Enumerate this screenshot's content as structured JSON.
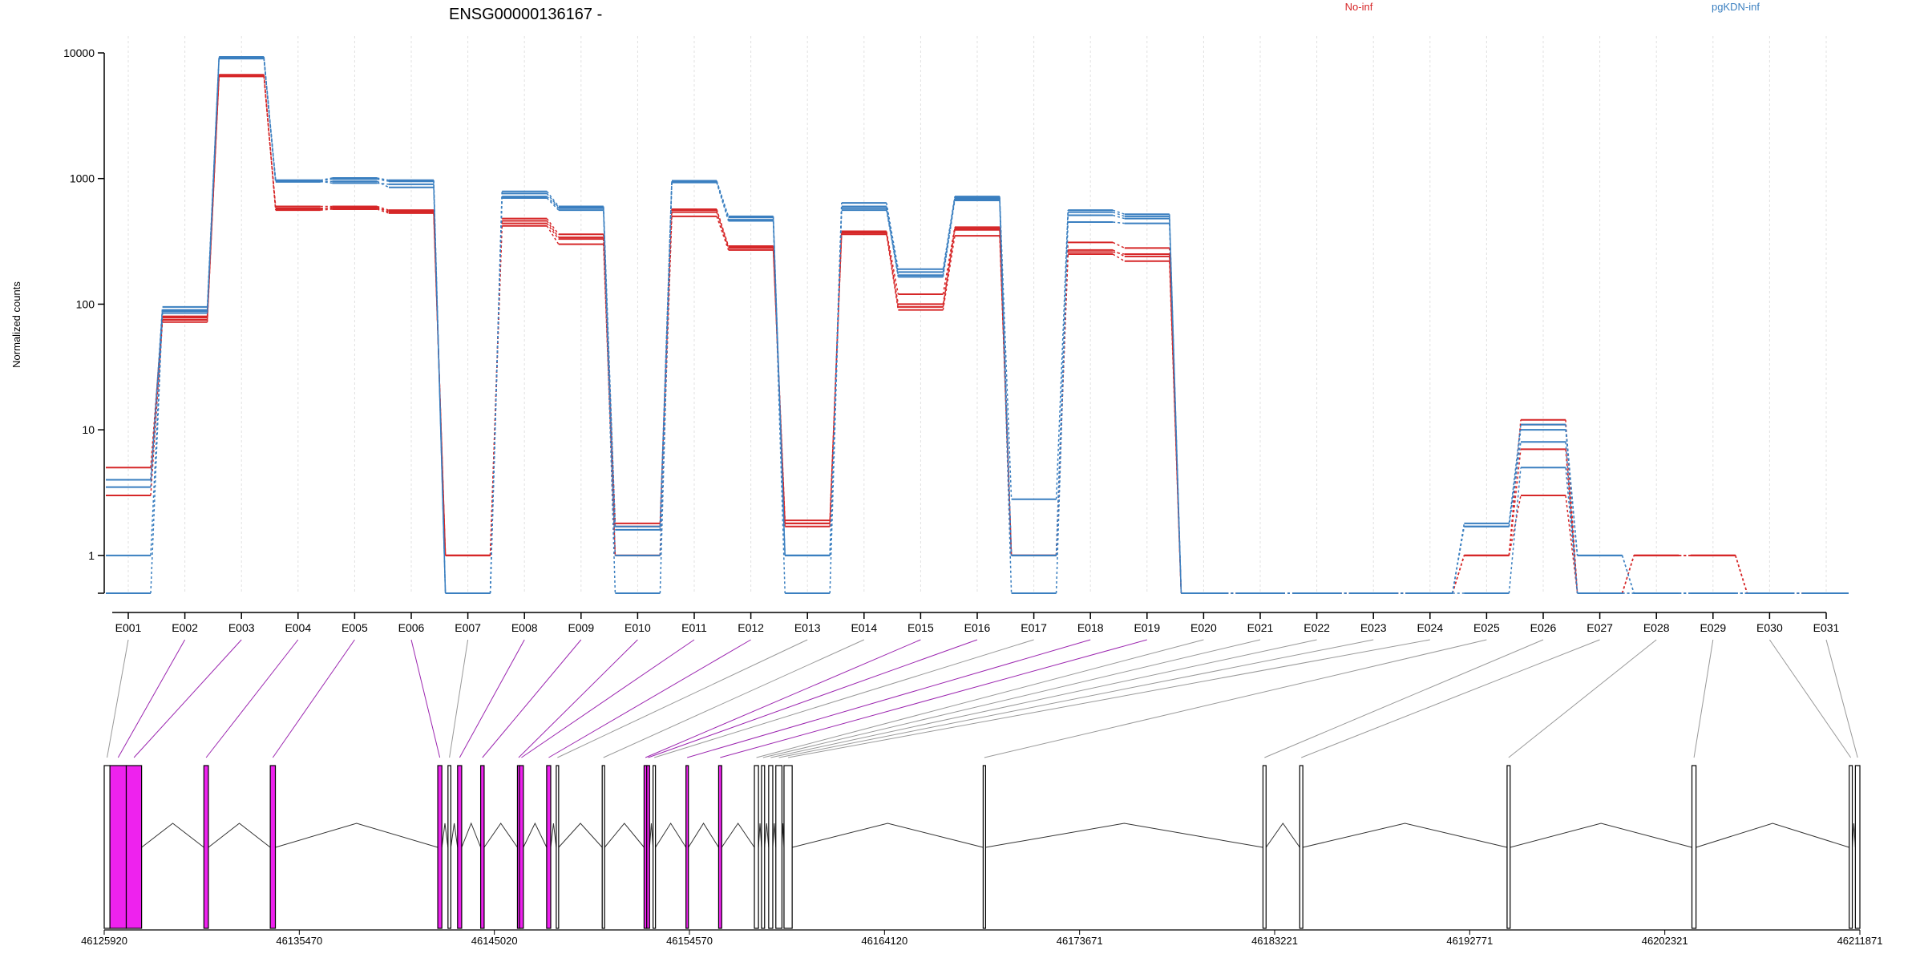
{
  "title": "ENSG00000136167 -",
  "legend": [
    {
      "name": "No-inf",
      "color": "#d62728"
    },
    {
      "name": "pgKDN-inf",
      "color": "#3a7fc0"
    }
  ],
  "colors": {
    "constitutive_exon": "#ee22ee",
    "nonconstitutive_exon": "#ffffff",
    "connector_const": "#9c27b0",
    "connector_other": "#999999",
    "intron_line": "#333333",
    "grid": "#e0e0e0"
  },
  "chart_data": {
    "type": "line",
    "scale": "log",
    "ylabel": "Normalized counts",
    "yticks": [
      1,
      10,
      100,
      1000,
      10000
    ],
    "yticklabels": [
      "1",
      "10",
      "100",
      "1000",
      "10000"
    ],
    "ylim": [
      0.5,
      10000
    ],
    "grid": "vertical-dotted",
    "categories": [
      "E001",
      "E002",
      "E003",
      "E004",
      "E005",
      "E006",
      "E007",
      "E008",
      "E009",
      "E010",
      "E011",
      "E012",
      "E013",
      "E014",
      "E015",
      "E016",
      "E017",
      "E018",
      "E019",
      "E020",
      "E021",
      "E022",
      "E023",
      "E024",
      "E025",
      "E026",
      "E027",
      "E028",
      "E029",
      "E030",
      "E031"
    ],
    "series": [
      {
        "group": "No-inf",
        "values": [
          5,
          80,
          6500,
          600,
          600,
          560,
          1,
          480,
          360,
          1.8,
          570,
          290,
          1.9,
          380,
          120,
          410,
          1,
          310,
          280,
          0.5,
          0.5,
          0.5,
          0.5,
          0.5,
          1,
          12,
          0.5,
          1,
          1,
          0.5,
          0.5
        ]
      },
      {
        "group": "No-inf",
        "values": [
          4,
          75,
          6600,
          570,
          590,
          540,
          1,
          440,
          330,
          1.7,
          540,
          280,
          1.8,
          370,
          100,
          390,
          1,
          270,
          240,
          0.5,
          0.5,
          0.5,
          0.5,
          0.5,
          1,
          11,
          0.5,
          1,
          1,
          0.5,
          0.5
        ]
      },
      {
        "group": "No-inf",
        "values": [
          3,
          72,
          6700,
          560,
          570,
          530,
          1,
          420,
          300,
          1,
          500,
          270,
          1.7,
          360,
          90,
          350,
          1,
          250,
          220,
          0.5,
          0.5,
          0.5,
          0.5,
          0.5,
          1,
          7,
          0.5,
          1,
          1,
          0.5,
          0.5
        ]
      },
      {
        "group": "No-inf",
        "values": [
          4,
          78,
          6550,
          580,
          580,
          550,
          1,
          460,
          340,
          1,
          560,
          285,
          1.8,
          375,
          95,
          400,
          1,
          260,
          250,
          0.5,
          0.5,
          0.5,
          0.5,
          0.5,
          1,
          3,
          0.5,
          1,
          1,
          0.5,
          0.5
        ]
      },
      {
        "group": "pgKDN-inf",
        "values": [
          4,
          95,
          9300,
          970,
          1010,
          970,
          0.5,
          790,
          600,
          1.7,
          960,
          500,
          1,
          640,
          190,
          720,
          2.8,
          560,
          520,
          0.5,
          0.5,
          0.5,
          0.5,
          0.5,
          1.8,
          11,
          1,
          0.5,
          0.5,
          0.5,
          0.5
        ]
      },
      {
        "group": "pgKDN-inf",
        "values": [
          3.5,
          90,
          9200,
          960,
          990,
          950,
          0.5,
          760,
          590,
          1.6,
          950,
          490,
          1,
          600,
          180,
          700,
          1,
          540,
          500,
          0.5,
          0.5,
          0.5,
          0.5,
          0.5,
          1.7,
          10,
          1,
          0.5,
          0.5,
          0.5,
          0.5
        ]
      },
      {
        "group": "pgKDN-inf",
        "values": [
          1,
          85,
          9100,
          950,
          920,
          900,
          0.5,
          720,
          580,
          1,
          940,
          470,
          1,
          560,
          170,
          690,
          1,
          510,
          480,
          0.5,
          0.5,
          0.5,
          0.5,
          0.5,
          1.7,
          8,
          0.5,
          0.5,
          0.5,
          0.5,
          0.5
        ]
      },
      {
        "group": "pgKDN-inf",
        "values": [
          0.5,
          88,
          9000,
          940,
          950,
          850,
          0.5,
          700,
          560,
          0.5,
          930,
          460,
          0.5,
          580,
          165,
          670,
          0.5,
          450,
          440,
          0.5,
          0.5,
          0.5,
          0.5,
          0.5,
          0.5,
          5,
          0.5,
          0.5,
          0.5,
          0.5,
          0.5
        ]
      }
    ]
  },
  "gene_model": {
    "genomic_ticks": [
      "46125920",
      "46135470",
      "46145020",
      "46154570",
      "46164120",
      "46173671",
      "46183221",
      "46192771",
      "46202321",
      "46211871"
    ],
    "start": 46125920,
    "end": 46211871,
    "exons": [
      {
        "id": "E001",
        "start": 46125920,
        "end": 46126200,
        "constitutive": false
      },
      {
        "id": "E002",
        "start": 46126200,
        "end": 46127000,
        "constitutive": true
      },
      {
        "id": "E003",
        "start": 46127000,
        "end": 46127750,
        "constitutive": true
      },
      {
        "id": "E004",
        "start": 46130800,
        "end": 46131020,
        "constitutive": true
      },
      {
        "id": "E005",
        "start": 46134050,
        "end": 46134300,
        "constitutive": true
      },
      {
        "id": "E006",
        "start": 46142250,
        "end": 46142450,
        "constitutive": true
      },
      {
        "id": "E007",
        "start": 46142750,
        "end": 46142890,
        "constitutive": false
      },
      {
        "id": "E008",
        "start": 46143220,
        "end": 46143420,
        "constitutive": true
      },
      {
        "id": "E009",
        "start": 46144350,
        "end": 46144520,
        "constitutive": true
      },
      {
        "id": "E010",
        "start": 46146150,
        "end": 46146250,
        "constitutive": true
      },
      {
        "id": "E011",
        "start": 46146250,
        "end": 46146440,
        "constitutive": true
      },
      {
        "id": "E012",
        "start": 46147580,
        "end": 46147780,
        "constitutive": true
      },
      {
        "id": "E013",
        "start": 46148050,
        "end": 46148150,
        "constitutive": false
      },
      {
        "id": "E014",
        "start": 46150300,
        "end": 46150380,
        "constitutive": false
      },
      {
        "id": "E015",
        "start": 46152350,
        "end": 46152480,
        "constitutive": true
      },
      {
        "id": "E016",
        "start": 46152480,
        "end": 46152620,
        "constitutive": true
      },
      {
        "id": "E017",
        "start": 46152790,
        "end": 46152900,
        "constitutive": false
      },
      {
        "id": "E018",
        "start": 46154400,
        "end": 46154520,
        "constitutive": true
      },
      {
        "id": "E019",
        "start": 46156000,
        "end": 46156150,
        "constitutive": true
      },
      {
        "id": "E020",
        "start": 46157750,
        "end": 46157950,
        "constitutive": false
      },
      {
        "id": "E021",
        "start": 46158100,
        "end": 46158250,
        "constitutive": false
      },
      {
        "id": "E022",
        "start": 46158450,
        "end": 46158650,
        "constitutive": false
      },
      {
        "id": "E023",
        "start": 46158800,
        "end": 46159100,
        "constitutive": false
      },
      {
        "id": "E024",
        "start": 46159200,
        "end": 46159600,
        "constitutive": false
      },
      {
        "id": "E025",
        "start": 46168950,
        "end": 46169050,
        "constitutive": false
      },
      {
        "id": "E026",
        "start": 46182650,
        "end": 46182800,
        "constitutive": false
      },
      {
        "id": "E027",
        "start": 46184450,
        "end": 46184600,
        "constitutive": false
      },
      {
        "id": "E028",
        "start": 46194600,
        "end": 46194750,
        "constitutive": false
      },
      {
        "id": "E029",
        "start": 46203650,
        "end": 46203850,
        "constitutive": false
      },
      {
        "id": "E030",
        "start": 46211350,
        "end": 46211500,
        "constitutive": false
      },
      {
        "id": "E031",
        "start": 46211650,
        "end": 46211871,
        "constitutive": false
      }
    ]
  }
}
